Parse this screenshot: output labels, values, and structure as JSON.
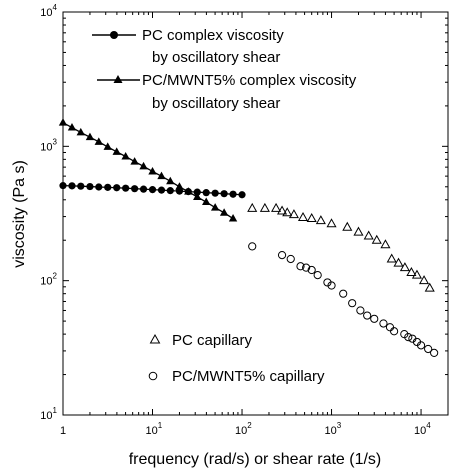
{
  "chart_data": {
    "type": "scatter",
    "x_scale": "log",
    "y_scale": "log",
    "xlim": [
      1,
      20000
    ],
    "ylim": [
      10,
      10000
    ],
    "xlabel": "frequency (rad/s) or shear rate (1/s)",
    "ylabel": "viscosity (Pa s)",
    "grid": false,
    "x_ticks": [
      {
        "value": 1,
        "base": "1",
        "exp": ""
      },
      {
        "value": 10,
        "base": "10",
        "exp": "1"
      },
      {
        "value": 100,
        "base": "10",
        "exp": "2"
      },
      {
        "value": 1000,
        "base": "10",
        "exp": "3"
      },
      {
        "value": 10000,
        "base": "10",
        "exp": "4"
      }
    ],
    "y_ticks": [
      {
        "value": 10,
        "base": "10",
        "exp": "1"
      },
      {
        "value": 100,
        "base": "10",
        "exp": "2"
      },
      {
        "value": 1000,
        "base": "10",
        "exp": "3"
      },
      {
        "value": 10000,
        "base": "10",
        "exp": "4"
      }
    ],
    "series": [
      {
        "name_lines": [
          "PC complex viscosity",
          "by oscillatory shear"
        ],
        "marker": "filled-circle",
        "line": true,
        "x": [
          1.0,
          1.26,
          1.58,
          2.0,
          2.51,
          3.16,
          3.98,
          5.01,
          6.31,
          7.94,
          10.0,
          12.6,
          15.8,
          20.0,
          25.1,
          31.6,
          39.8,
          50.1,
          63.1,
          79.4,
          100.0
        ],
        "y": [
          510,
          508,
          505,
          502,
          498,
          495,
          492,
          488,
          484,
          480,
          476,
          472,
          468,
          464,
          460,
          456,
          452,
          448,
          444,
          440,
          436
        ]
      },
      {
        "name_lines": [
          "PC/MWNT5% complex viscosity",
          "by oscillatory shear"
        ],
        "marker": "filled-triangle",
        "line": true,
        "x": [
          1.0,
          1.26,
          1.58,
          2.0,
          2.51,
          3.16,
          3.98,
          5.01,
          6.31,
          7.94,
          10.0,
          12.6,
          15.8,
          20.0,
          25.1,
          31.6,
          39.8,
          50.1,
          63.1,
          79.4
        ],
        "y": [
          1500,
          1380,
          1270,
          1170,
          1080,
          990,
          910,
          840,
          770,
          710,
          650,
          600,
          550,
          500,
          460,
          420,
          385,
          350,
          320,
          290
        ]
      },
      {
        "name_lines": [
          "PC capillary"
        ],
        "marker": "open-triangle",
        "line": false,
        "x": [
          130,
          180,
          240,
          280,
          320,
          380,
          480,
          600,
          760,
          1000,
          1500,
          2000,
          2600,
          3200,
          4000,
          4700,
          5600,
          6600,
          7800,
          9000,
          10800,
          12500
        ],
        "y": [
          345,
          345,
          345,
          330,
          320,
          310,
          295,
          290,
          280,
          265,
          250,
          230,
          215,
          200,
          185,
          145,
          135,
          125,
          115,
          110,
          100,
          88
        ]
      },
      {
        "name_lines": [
          "PC/MWNT5% capillary"
        ],
        "marker": "open-circle",
        "line": false,
        "x": [
          130,
          280,
          350,
          450,
          520,
          600,
          700,
          900,
          1000,
          1350,
          1700,
          2100,
          2500,
          3000,
          3800,
          4500,
          5000,
          6500,
          7200,
          8000,
          9000,
          10000,
          12000,
          14000
        ],
        "y": [
          180,
          155,
          145,
          128,
          125,
          120,
          110,
          97,
          92,
          80,
          68,
          60,
          55,
          52,
          48,
          45,
          42,
          40,
          38,
          37,
          35,
          33,
          31,
          29
        ]
      }
    ],
    "legend_upper": "top-left",
    "legend_lower": "lower-center"
  }
}
